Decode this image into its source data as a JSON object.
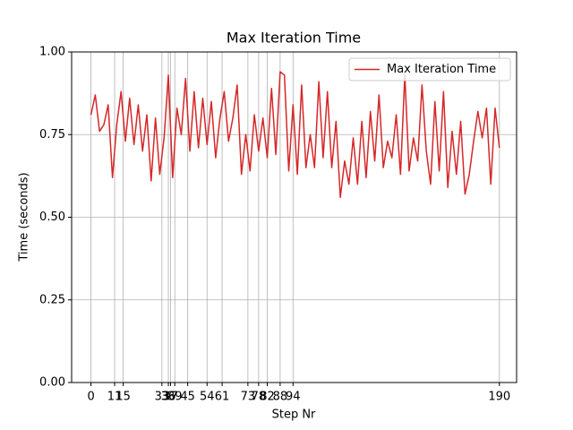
{
  "chart_data": {
    "type": "line",
    "title": "Max Iteration Time",
    "x_label": "Step Nr",
    "y_label": "Time (seconds)",
    "xlim": [
      -9,
      198
    ],
    "ylim": [
      0,
      1
    ],
    "yticks": [
      {
        "value": 0,
        "label": "0.00"
      },
      {
        "value": 0.25,
        "label": "0.25"
      },
      {
        "value": 0.5,
        "label": "0.50"
      },
      {
        "value": 0.75,
        "label": "0.75"
      },
      {
        "value": 1,
        "label": "1.00"
      }
    ],
    "xticks": [
      0,
      11,
      15,
      33,
      36,
      37,
      39,
      45,
      54,
      61,
      73,
      78,
      82,
      88,
      94,
      190
    ],
    "grid": true,
    "legend": "upper right",
    "x": [
      0,
      2,
      4,
      6,
      8,
      10,
      12,
      14,
      16,
      18,
      20,
      22,
      24,
      26,
      28,
      30,
      32,
      34,
      36,
      38,
      40,
      42,
      44,
      46,
      48,
      50,
      52,
      54,
      56,
      58,
      60,
      62,
      64,
      66,
      68,
      70,
      72,
      74,
      76,
      78,
      80,
      82,
      84,
      86,
      88,
      90,
      92,
      94,
      96,
      98,
      100,
      102,
      104,
      106,
      108,
      110,
      112,
      114,
      116,
      118,
      120,
      122,
      124,
      126,
      128,
      130,
      132,
      134,
      136,
      138,
      140,
      142,
      144,
      146,
      148,
      150,
      152,
      154,
      156,
      158,
      160,
      162,
      164,
      166,
      168,
      170,
      172,
      174,
      176,
      178,
      180,
      182,
      184,
      186,
      188,
      190
    ],
    "series": [
      {
        "name": "Max Iteration Time",
        "color": "#d62728",
        "values": [
          0.81,
          0.87,
          0.76,
          0.78,
          0.84,
          0.62,
          0.78,
          0.88,
          0.73,
          0.86,
          0.72,
          0.84,
          0.7,
          0.81,
          0.61,
          0.8,
          0.63,
          0.74,
          0.93,
          0.62,
          0.83,
          0.75,
          0.92,
          0.7,
          0.88,
          0.71,
          0.86,
          0.72,
          0.85,
          0.68,
          0.8,
          0.88,
          0.73,
          0.8,
          0.9,
          0.63,
          0.75,
          0.64,
          0.81,
          0.7,
          0.8,
          0.68,
          0.89,
          0.69,
          0.94,
          0.93,
          0.64,
          0.84,
          0.63,
          0.9,
          0.65,
          0.75,
          0.65,
          0.91,
          0.68,
          0.88,
          0.65,
          0.79,
          0.56,
          0.67,
          0.6,
          0.74,
          0.6,
          0.79,
          0.62,
          0.82,
          0.67,
          0.87,
          0.65,
          0.73,
          0.68,
          0.81,
          0.63,
          0.93,
          0.64,
          0.74,
          0.67,
          0.9,
          0.7,
          0.6,
          0.85,
          0.64,
          0.88,
          0.59,
          0.76,
          0.63,
          0.79,
          0.57,
          0.63,
          0.73,
          0.82,
          0.74,
          0.83,
          0.6,
          0.83,
          0.71
        ]
      }
    ]
  }
}
